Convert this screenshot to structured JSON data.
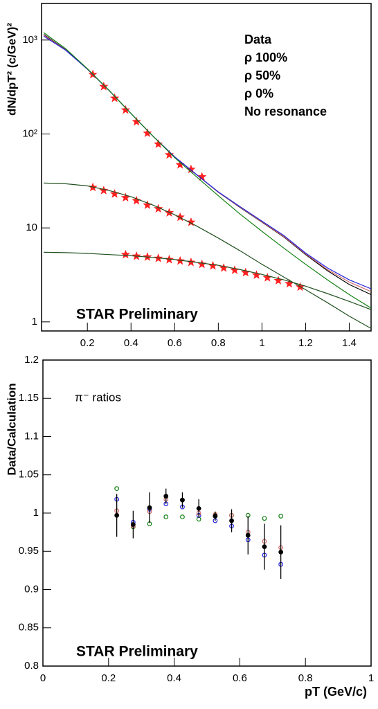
{
  "chart_data": [
    {
      "type": "line",
      "ylog": true,
      "xlim": [
        -0.01,
        1.5
      ],
      "xticks": [
        0.2,
        0.4,
        0.6,
        0.8,
        1,
        1.2,
        1.4
      ],
      "ylim": [
        0.8,
        2450
      ],
      "yticks": [
        1,
        10,
        {
          "value": 100,
          "label": "10²"
        },
        {
          "value": 1000,
          "label": "10³"
        }
      ],
      "ylabel": "dN/dpT² (c/GeV)²",
      "annotations": [
        "STAR Preliminary"
      ],
      "legend": "top-right",
      "series": [
        {
          "name": "Data",
          "color": "#ff2020",
          "marker": "star",
          "x": [
            0.225,
            0.275,
            0.325,
            0.375,
            0.425,
            0.475,
            0.525,
            0.575,
            0.625,
            0.675,
            0.725
          ],
          "values": [
            430,
            320,
            240,
            180,
            135,
            102,
            78,
            60,
            47,
            42,
            35
          ]
        },
        {
          "color": "#ff2020",
          "marker": "star",
          "x": [
            0.225,
            0.275,
            0.325,
            0.375,
            0.425,
            0.475,
            0.525,
            0.575,
            0.625,
            0.675
          ],
          "values": [
            27,
            25,
            23,
            21,
            19.5,
            17.5,
            16,
            14.5,
            13,
            11.5
          ]
        },
        {
          "color": "#ff2020",
          "marker": "star",
          "x": [
            0.375,
            0.425,
            0.475,
            0.525,
            0.575,
            0.625,
            0.675,
            0.725,
            0.775,
            0.825,
            0.875,
            0.925,
            0.975,
            1.025,
            1.075,
            1.125,
            1.175
          ],
          "values": [
            5.2,
            5.0,
            4.9,
            4.75,
            4.6,
            4.45,
            4.3,
            4.1,
            3.95,
            3.75,
            3.55,
            3.35,
            3.15,
            2.95,
            2.75,
            2.55,
            2.35
          ]
        },
        {
          "name": "ρ 100%",
          "color": "#000000",
          "x": [
            0,
            0.1,
            0.2,
            0.3,
            0.4,
            0.5,
            0.6,
            0.7,
            0.8,
            0.9,
            1,
            1.1,
            1.2,
            1.3,
            1.4,
            1.5
          ],
          "values": [
            1150,
            790,
            490,
            290,
            165,
            95,
            57,
            37,
            24,
            16.5,
            11.5,
            8,
            5.2,
            3.5,
            2.5,
            1.95
          ]
        },
        {
          "name": "ρ 50%",
          "color": "#d06868",
          "x": [
            0,
            0.1,
            0.2,
            0.3,
            0.4,
            0.5,
            0.6,
            0.7,
            0.8,
            0.9,
            1,
            1.1,
            1.2,
            1.3,
            1.4,
            1.5
          ],
          "values": [
            1130,
            785,
            490,
            290,
            165,
            95,
            57,
            37,
            24,
            16.6,
            11.6,
            8.1,
            5.3,
            3.6,
            2.65,
            2.1
          ]
        },
        {
          "name": "ρ 0%",
          "color": "#2020e0",
          "x": [
            0,
            0.1,
            0.2,
            0.3,
            0.4,
            0.5,
            0.6,
            0.7,
            0.8,
            0.9,
            1,
            1.1,
            1.2,
            1.3,
            1.4,
            1.5
          ],
          "values": [
            1100,
            780,
            490,
            290,
            165,
            95,
            57,
            37,
            24.2,
            16.8,
            11.8,
            8.3,
            5.4,
            3.75,
            2.8,
            2.25
          ]
        },
        {
          "name": "No resonance",
          "color": "#108010",
          "x": [
            0,
            0.1,
            0.2,
            0.3,
            0.4,
            0.5,
            0.6,
            0.7,
            0.8,
            0.9,
            1,
            1.1,
            1.2,
            1.3,
            1.4,
            1.5
          ],
          "values": [
            1200,
            810,
            495,
            290,
            165,
            95,
            56,
            35,
            22,
            14,
            9.2,
            6.1,
            4.1,
            2.8,
            1.95,
            1.4
          ]
        },
        {
          "color": "#205020",
          "x": [
            0,
            0.1,
            0.2,
            0.3,
            0.4,
            0.5,
            0.6,
            0.7,
            0.8,
            0.9,
            1,
            1.1,
            1.2,
            1.3,
            1.4,
            1.5
          ],
          "values": [
            30,
            29.5,
            28,
            25,
            21.5,
            17.5,
            13.8,
            10.5,
            7.8,
            5.7,
            4.1,
            3.0,
            2.2,
            1.6,
            1.15,
            0.85
          ]
        },
        {
          "color": "#205020",
          "x": [
            0,
            0.1,
            0.2,
            0.3,
            0.4,
            0.5,
            0.6,
            0.7,
            0.8,
            0.9,
            1,
            1.1,
            1.2,
            1.3,
            1.4,
            1.5
          ],
          "values": [
            5.5,
            5.45,
            5.35,
            5.2,
            5.05,
            4.85,
            4.6,
            4.3,
            4.0,
            3.6,
            3.2,
            2.8,
            2.4,
            2.0,
            1.65,
            1.35
          ]
        }
      ]
    },
    {
      "type": "scatter",
      "xlim": [
        0,
        1
      ],
      "xticks": [
        0,
        0.2,
        0.4,
        0.6,
        0.8,
        1
      ],
      "ylim": [
        0.8,
        1.2
      ],
      "yticks": [
        0.8,
        0.85,
        0.9,
        0.95,
        1,
        1.05,
        1.1,
        1.15,
        1.2
      ],
      "xlabel": "pT (GeV/c)",
      "ylabel": "Data/Calculation",
      "annotations": [
        "π⁻ ratios",
        "STAR Preliminary"
      ],
      "series": [
        {
          "color": "#108010",
          "marker": "circle-open",
          "x": [
            0.225,
            0.275,
            0.325,
            0.375,
            0.425,
            0.475,
            0.525,
            0.575,
            0.625,
            0.675,
            0.725
          ],
          "values": [
            1.032,
            0.982,
            0.986,
            0.995,
            0.995,
            0.992,
            0.997,
            0.997,
            0.997,
            0.993,
            0.996
          ]
        },
        {
          "color": "#2020e0",
          "marker": "circle-open",
          "x": [
            0.225,
            0.275,
            0.325,
            0.375,
            0.425,
            0.475,
            0.525,
            0.575,
            0.625,
            0.675,
            0.725
          ],
          "values": [
            1.018,
            0.988,
            1.005,
            1.012,
            1.008,
            0.997,
            0.99,
            0.983,
            0.965,
            0.945,
            0.933
          ]
        },
        {
          "color": "#d06868",
          "marker": "circle-open",
          "x": [
            0.225,
            0.275,
            0.325,
            0.375,
            0.425,
            0.475,
            0.525,
            0.575,
            0.625,
            0.675,
            0.725
          ],
          "values": [
            1.003,
            0.983,
            1.002,
            1.018,
            1.017,
            1.0,
            0.998,
            0.997,
            0.975,
            0.963,
            0.955
          ]
        },
        {
          "color": "#000000",
          "marker": "circle-filled",
          "x": [
            0.225,
            0.275,
            0.325,
            0.375,
            0.425,
            0.475,
            0.525,
            0.575,
            0.625,
            0.675,
            0.725
          ],
          "values": [
            0.997,
            0.985,
            1.007,
            1.022,
            1.017,
            1.006,
            0.996,
            0.99,
            0.971,
            0.956,
            0.949
          ],
          "errors": [
            0.028,
            0.018,
            0.02,
            0.01,
            0.01,
            0.012,
            0.006,
            0.015,
            0.025,
            0.03,
            0.035
          ]
        }
      ]
    }
  ]
}
